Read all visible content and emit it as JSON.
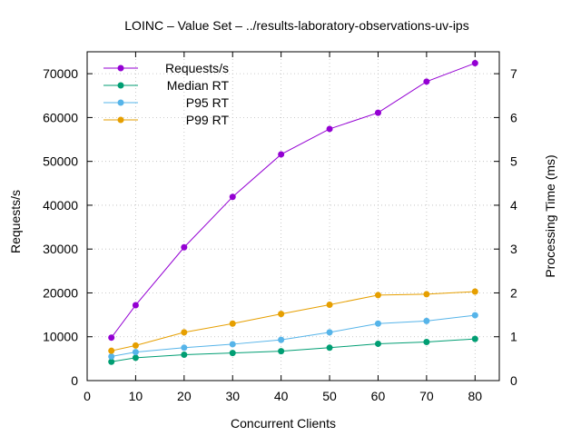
{
  "chart_data": {
    "type": "line",
    "title": "LOINC – Value Set – ../results-laboratory-observations-uv-ips",
    "xlabel": "Concurrent Clients",
    "ylabel": "Requests/s",
    "y2label": "Processing Time (ms)",
    "xlim": [
      0,
      85
    ],
    "ylim": [
      0,
      75000
    ],
    "y2lim": [
      0,
      7.5
    ],
    "xticks": [
      0,
      10,
      20,
      30,
      40,
      50,
      60,
      70,
      80
    ],
    "yticks": [
      0,
      10000,
      20000,
      30000,
      40000,
      50000,
      60000,
      70000
    ],
    "y2ticks": [
      0,
      1,
      2,
      3,
      4,
      5,
      6,
      7
    ],
    "grid": true,
    "legend_position": "top-left",
    "x": [
      5,
      10,
      20,
      30,
      40,
      50,
      60,
      70,
      80
    ],
    "series": [
      {
        "name": "Requests/s",
        "axis": "y",
        "color": "#9400d3",
        "values": [
          9800,
          17200,
          30400,
          41900,
          51600,
          57400,
          61100,
          68200,
          72400
        ]
      },
      {
        "name": "Median RT",
        "axis": "y2",
        "color": "#009e73",
        "values": [
          0.43,
          0.52,
          0.59,
          0.63,
          0.67,
          0.75,
          0.84,
          0.88,
          0.95
        ]
      },
      {
        "name": "P95 RT",
        "axis": "y2",
        "color": "#56b4e9",
        "values": [
          0.55,
          0.65,
          0.75,
          0.83,
          0.93,
          1.1,
          1.3,
          1.36,
          1.49
        ]
      },
      {
        "name": "P99 RT",
        "axis": "y2",
        "color": "#e69f00",
        "values": [
          0.68,
          0.8,
          1.1,
          1.3,
          1.52,
          1.73,
          1.95,
          1.97,
          2.03
        ]
      }
    ]
  }
}
